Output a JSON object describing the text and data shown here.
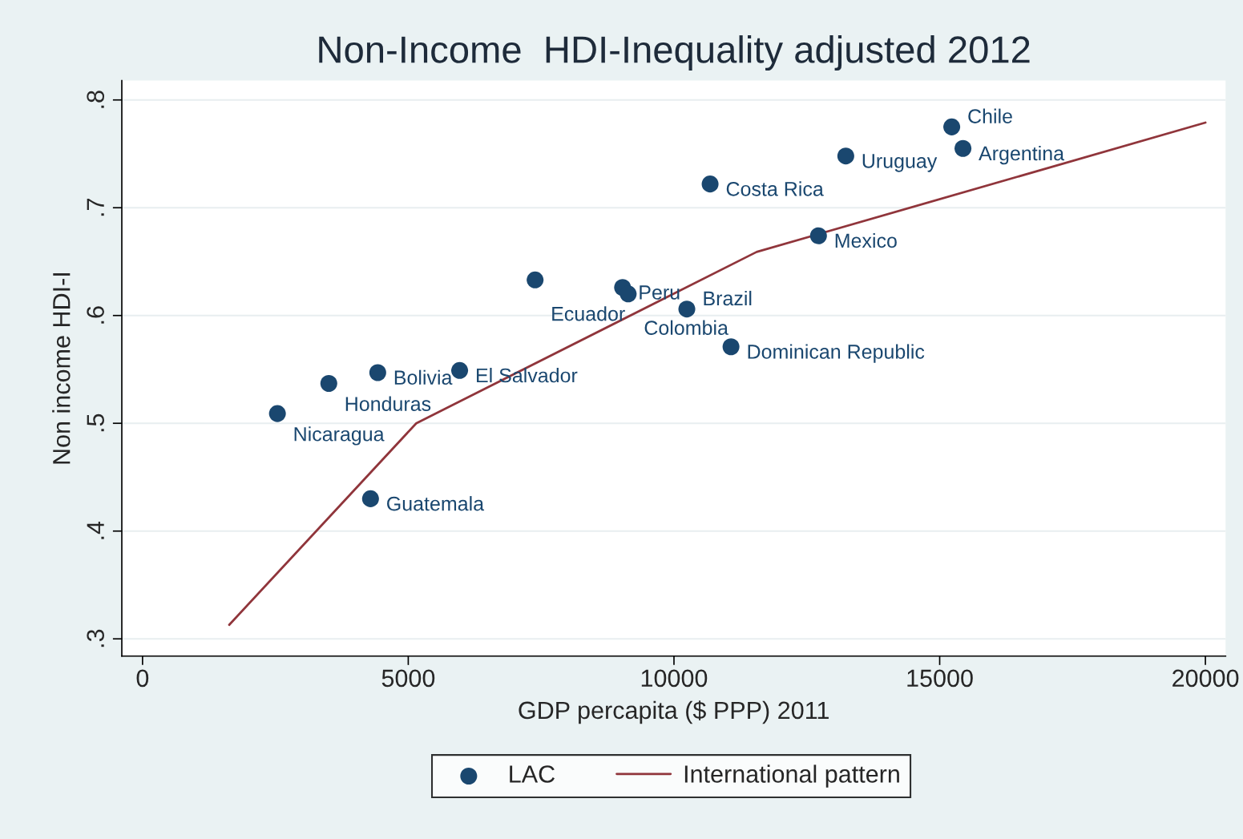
{
  "chart_data": {
    "type": "scatter",
    "title": "Non-Income  HDI-Inequality adjusted 2012",
    "xlabel": "GDP percapita ($ PPP) 2011",
    "ylabel": "Non income HDI-I",
    "series": [
      {
        "name": "LAC",
        "color": "#1a476f",
        "marker": "circle",
        "x": [
          15227,
          15438,
          13233,
          10680,
          12719,
          7387,
          9033,
          9139,
          10242,
          11073,
          5967,
          4426,
          3505,
          2538,
          4290
        ],
        "values": [
          0.775,
          0.755,
          0.748,
          0.722,
          0.674,
          0.633,
          0.626,
          0.62,
          0.606,
          0.571,
          0.549,
          0.547,
          0.537,
          0.509,
          0.43
        ]
      },
      {
        "name": "International pattern",
        "type": "line",
        "color": "#90353b",
        "line_style": "solid",
        "x": [
          1631,
          5151,
          11556,
          20000
        ],
        "values": [
          0.313,
          0.5,
          0.659,
          0.779
        ]
      }
    ],
    "annotations": [
      {
        "text": "Chile",
        "x": 15227,
        "y": 0.775
      },
      {
        "text": "Argentina",
        "x": 15438,
        "y": 0.755
      },
      {
        "text": "Uruguay",
        "x": 13233,
        "y": 0.748
      },
      {
        "text": "Costa Rica",
        "x": 10680,
        "y": 0.722
      },
      {
        "text": "Mexico",
        "x": 12719,
        "y": 0.674
      },
      {
        "text": "Ecuador",
        "x": 7387,
        "y": 0.633
      },
      {
        "text": "Peru",
        "x": 9033,
        "y": 0.626
      },
      {
        "text": "Colombia",
        "x": 9139,
        "y": 0.62
      },
      {
        "text": "Brazil",
        "x": 10242,
        "y": 0.606
      },
      {
        "text": "Dominican Republic",
        "x": 11073,
        "y": 0.571
      },
      {
        "text": "El Salvador",
        "x": 5967,
        "y": 0.549
      },
      {
        "text": "Bolivia",
        "x": 4426,
        "y": 0.547
      },
      {
        "text": "Honduras",
        "x": 3505,
        "y": 0.537
      },
      {
        "text": "Nicaragua",
        "x": 2538,
        "y": 0.509
      },
      {
        "text": "Guatemala",
        "x": 4290,
        "y": 0.43
      }
    ],
    "xlim": [
      -390,
      20380
    ],
    "ylim": [
      0.284,
      0.818
    ],
    "xticks": [
      0,
      5000,
      10000,
      15000,
      20000
    ],
    "yticks": [
      {
        "value": 0.3,
        "label": ".3"
      },
      {
        "value": 0.4,
        "label": ".4"
      },
      {
        "value": 0.5,
        "label": ".5"
      },
      {
        "value": 0.6,
        "label": ".6"
      },
      {
        "value": 0.7,
        "label": ".7"
      },
      {
        "value": 0.8,
        "label": ".8"
      }
    ],
    "grid": "y",
    "legend": "bottom"
  }
}
